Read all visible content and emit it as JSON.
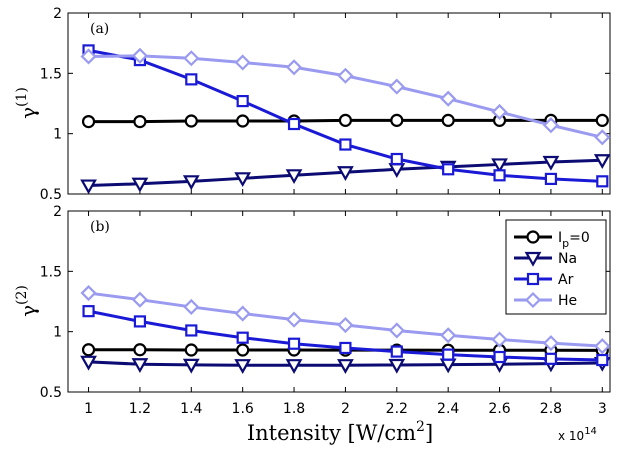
{
  "chart_data": {
    "type": "line",
    "x": [
      1,
      1.2,
      1.4,
      1.6,
      1.8,
      2,
      2.2,
      2.4,
      2.6,
      2.8,
      3
    ],
    "x_tick_labels": [
      "1",
      "1.2",
      "1.4",
      "1.6",
      "1.8",
      "2",
      "2.2",
      "2.4",
      "2.6",
      "2.8",
      "3"
    ],
    "xlim": [
      0.92,
      3.03
    ],
    "xlabel": "Intensity [W/cm",
    "xlabel_sup": "2",
    "xlabel_end": "]",
    "x_scale_base": "x 10",
    "x_scale_exp": "14",
    "legend": {
      "location": "top-right",
      "entries": [
        {
          "base": "I",
          "sub": "p",
          "rest": "=0"
        },
        {
          "base": "Na",
          "sub": "",
          "rest": ""
        },
        {
          "base": "Ar",
          "sub": "",
          "rest": ""
        },
        {
          "base": "He",
          "sub": "",
          "rest": ""
        }
      ]
    },
    "panels": [
      {
        "tag": "(a)",
        "ylabel_base": "γ",
        "ylabel_sup": "(1)",
        "ylim": [
          0.5,
          2
        ],
        "yticks": [
          0.5,
          1,
          1.5,
          2
        ],
        "ytick_labels": [
          "0.5",
          "1",
          "1.5",
          "2"
        ],
        "series": [
          {
            "name": "Ip=0",
            "color": "#000000",
            "marker": "circle",
            "values": [
              1.1,
              1.1,
              1.105,
              1.105,
              1.105,
              1.11,
              1.11,
              1.11,
              1.11,
              1.11,
              1.11
            ]
          },
          {
            "name": "Na",
            "color": "#0b0b73",
            "marker": "triangle-down",
            "values": [
              0.57,
              0.585,
              0.605,
              0.63,
              0.655,
              0.68,
              0.705,
              0.725,
              0.745,
              0.765,
              0.78
            ]
          },
          {
            "name": "Ar",
            "color": "#1a1ad6",
            "marker": "square",
            "values": [
              1.69,
              1.61,
              1.45,
              1.27,
              1.08,
              0.91,
              0.79,
              0.705,
              0.655,
              0.625,
              0.605
            ]
          },
          {
            "name": "He",
            "color": "#9a9af0",
            "marker": "diamond",
            "values": [
              1.64,
              1.645,
              1.625,
              1.59,
              1.55,
              1.48,
              1.39,
              1.29,
              1.18,
              1.07,
              0.97
            ]
          }
        ]
      },
      {
        "tag": "(b)",
        "ylabel_base": "γ",
        "ylabel_sup": "(2)",
        "ylim": [
          0.5,
          2
        ],
        "yticks": [
          0.5,
          1,
          1.5,
          2
        ],
        "ytick_labels": [
          "0.5",
          "1",
          "1.5",
          "2"
        ],
        "series": [
          {
            "name": "Ip=0",
            "color": "#000000",
            "marker": "circle",
            "values": [
              0.85,
              0.85,
              0.848,
              0.848,
              0.848,
              0.847,
              0.847,
              0.846,
              0.846,
              0.846,
              0.845
            ]
          },
          {
            "name": "Na",
            "color": "#0b0b73",
            "marker": "triangle-down",
            "values": [
              0.75,
              0.73,
              0.725,
              0.722,
              0.722,
              0.722,
              0.724,
              0.727,
              0.73,
              0.735,
              0.74
            ]
          },
          {
            "name": "Ar",
            "color": "#1a1ad6",
            "marker": "square",
            "values": [
              1.17,
              1.085,
              1.01,
              0.95,
              0.9,
              0.865,
              0.835,
              0.81,
              0.79,
              0.775,
              0.765
            ]
          },
          {
            "name": "He",
            "color": "#9a9af0",
            "marker": "diamond",
            "values": [
              1.32,
              1.265,
              1.205,
              1.15,
              1.1,
              1.055,
              1.01,
              0.97,
              0.935,
              0.905,
              0.88
            ]
          }
        ]
      }
    ]
  }
}
